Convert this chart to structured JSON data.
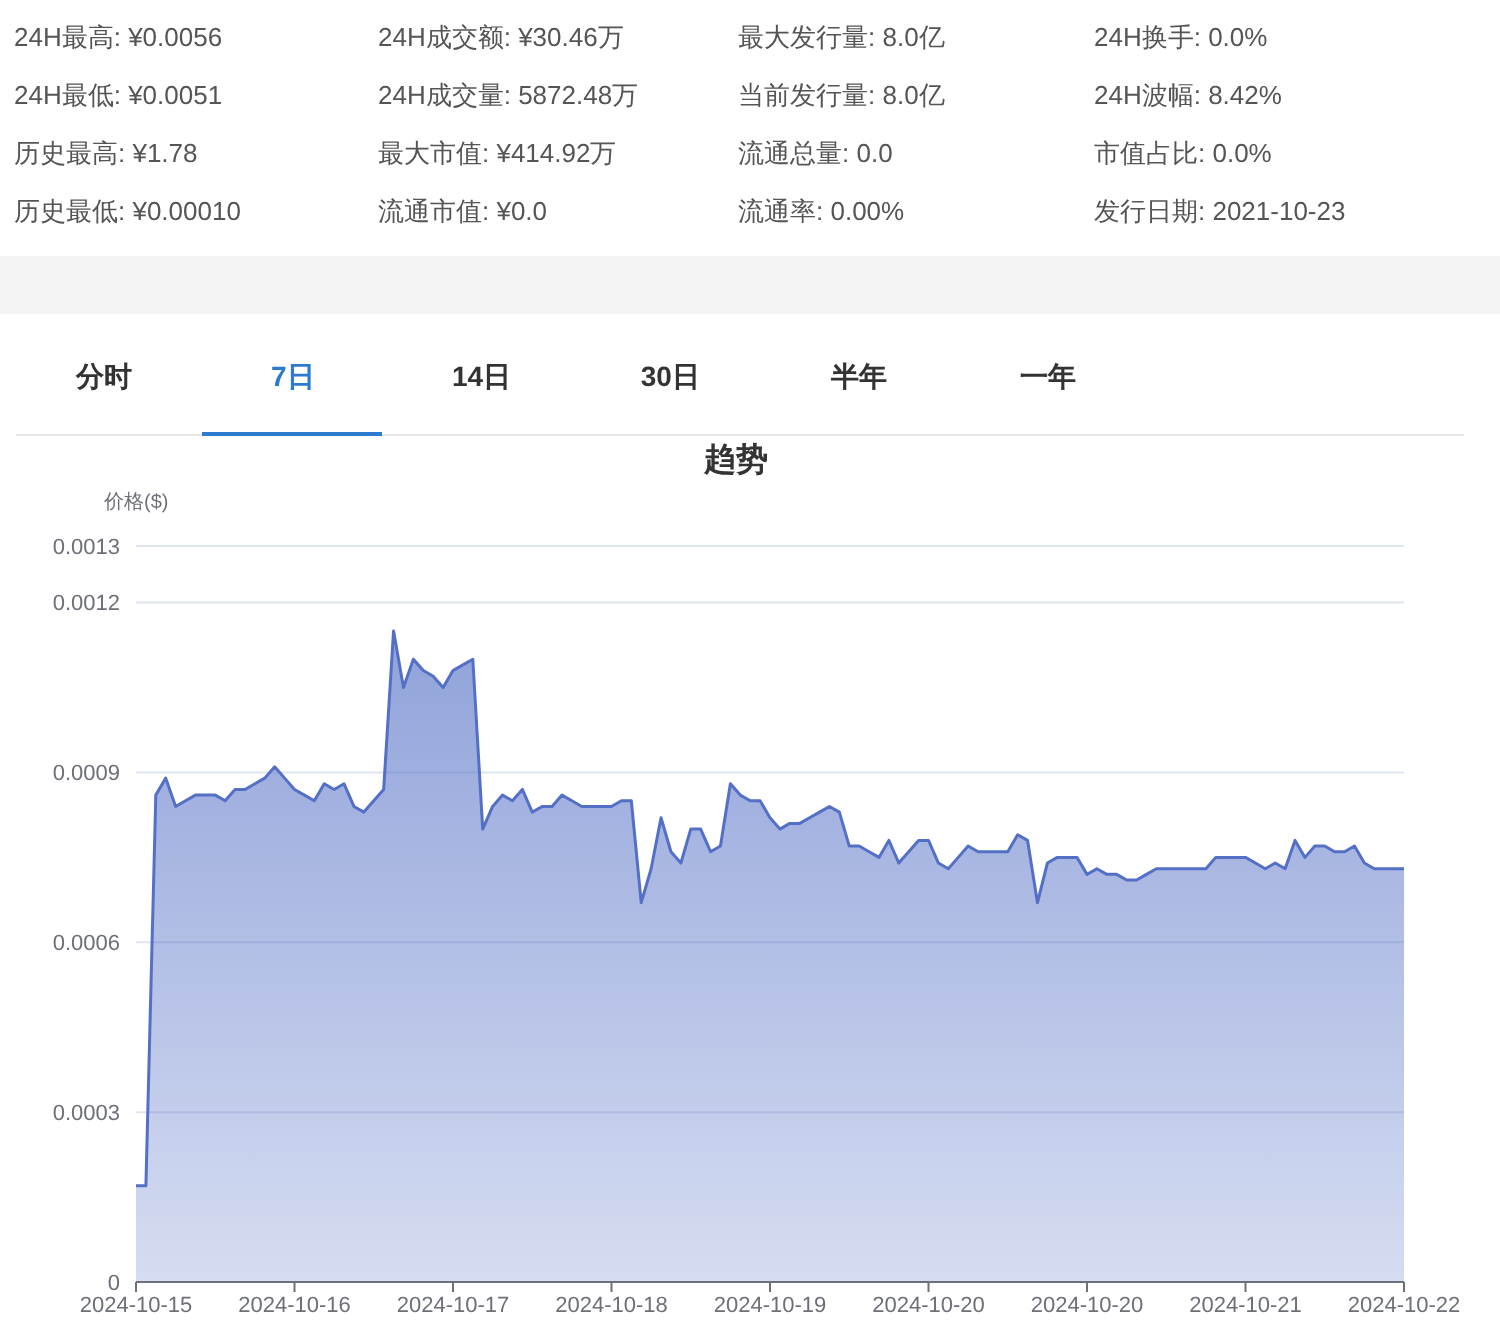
{
  "chart_data": {
    "type": "area",
    "title": "趋势",
    "ylabel": "价格($)",
    "annotations": [
      "24H最高: ¥0.0056",
      "24H成交额: ¥30.46万",
      "最大发行量: 8.0亿",
      "24H换手: 0.0%",
      "24H最低: ¥0.0051",
      "24H成交量: 5872.48万",
      "当前发行量: 8.0亿",
      "24H波幅: 8.42%",
      "历史最高: ¥1.78",
      "最大市值: ¥414.92万",
      "流通总量: 0.0",
      "市值占比: 0.0%",
      "历史最低: ¥0.00010",
      "流通市值: ¥0.0",
      "流通率: 0.00%",
      "发行日期: 2021-10-23",
      "分时",
      "7日",
      "14日",
      "30日",
      "半年",
      "一年"
    ],
    "categories": [
      "2024-10-15",
      null,
      null,
      null,
      null,
      null,
      null,
      null,
      null,
      null,
      null,
      null,
      null,
      null,
      null,
      null,
      "2024-10-16",
      null,
      null,
      null,
      null,
      null,
      null,
      null,
      null,
      null,
      null,
      null,
      null,
      null,
      null,
      null,
      "2024-10-17",
      null,
      null,
      null,
      null,
      null,
      null,
      null,
      null,
      null,
      null,
      null,
      null,
      null,
      null,
      null,
      "2024-10-18",
      null,
      null,
      null,
      null,
      null,
      null,
      null,
      null,
      null,
      null,
      null,
      null,
      null,
      null,
      null,
      "2024-10-19",
      null,
      null,
      null,
      null,
      null,
      null,
      null,
      null,
      null,
      null,
      null,
      null,
      null,
      null,
      null,
      "2024-10-20",
      null,
      null,
      null,
      null,
      null,
      null,
      null,
      null,
      null,
      null,
      null,
      null,
      null,
      null,
      null,
      "2024-10-20",
      null,
      null,
      null,
      null,
      null,
      null,
      null,
      null,
      null,
      null,
      null,
      null,
      null,
      null,
      null,
      "2024-10-21",
      null,
      null,
      null,
      null,
      null,
      null,
      null,
      null,
      null,
      null,
      null,
      null,
      null,
      null,
      null,
      "2024-10-22"
    ],
    "values": [
      0.00017,
      0.00017,
      0.00086,
      0.00089,
      0.00084,
      0.00085,
      0.00086,
      0.00086,
      0.00086,
      0.00085,
      0.00087,
      0.00087,
      0.00088,
      0.00089,
      0.00091,
      0.00089,
      0.00087,
      0.00086,
      0.00085,
      0.00088,
      0.00087,
      0.00088,
      0.00084,
      0.00083,
      0.00085,
      0.00087,
      0.00115,
      0.00105,
      0.0011,
      0.00108,
      0.00107,
      0.00105,
      0.00108,
      0.00109,
      0.0011,
      0.0008,
      0.00084,
      0.00086,
      0.00085,
      0.00087,
      0.00083,
      0.00084,
      0.00084,
      0.00086,
      0.00085,
      0.00084,
      0.00084,
      0.00084,
      0.00084,
      0.00085,
      0.00085,
      0.00067,
      0.00073,
      0.00082,
      0.00076,
      0.00074,
      0.0008,
      0.0008,
      0.00076,
      0.00077,
      0.00088,
      0.00086,
      0.00085,
      0.00085,
      0.00082,
      0.0008,
      0.00081,
      0.00081,
      0.00082,
      0.00083,
      0.00084,
      0.00083,
      0.00077,
      0.00077,
      0.00076,
      0.00075,
      0.00078,
      0.00074,
      0.00076,
      0.00078,
      0.00078,
      0.00074,
      0.00073,
      0.00075,
      0.00077,
      0.00076,
      0.00076,
      0.00076,
      0.00076,
      0.00079,
      0.00078,
      0.00067,
      0.00074,
      0.00075,
      0.00075,
      0.00075,
      0.00072,
      0.00073,
      0.00072,
      0.00072,
      0.00071,
      0.00071,
      0.00072,
      0.00073,
      0.00073,
      0.00073,
      0.00073,
      0.00073,
      0.00073,
      0.00075,
      0.00075,
      0.00075,
      0.00075,
      0.00074,
      0.00073,
      0.00074,
      0.00073,
      0.00078,
      0.00075,
      0.00077,
      0.00077,
      0.00076,
      0.00076,
      0.00077,
      0.00074,
      0.00073,
      0.00073,
      0.00073,
      0.00073
    ],
    "color": "#5470c6",
    "ylim": [
      0,
      0.0013
    ],
    "yticks": [
      0,
      0.0003,
      0.0006,
      0.0009,
      0.0012,
      0.0013
    ],
    "grid": "y"
  }
}
